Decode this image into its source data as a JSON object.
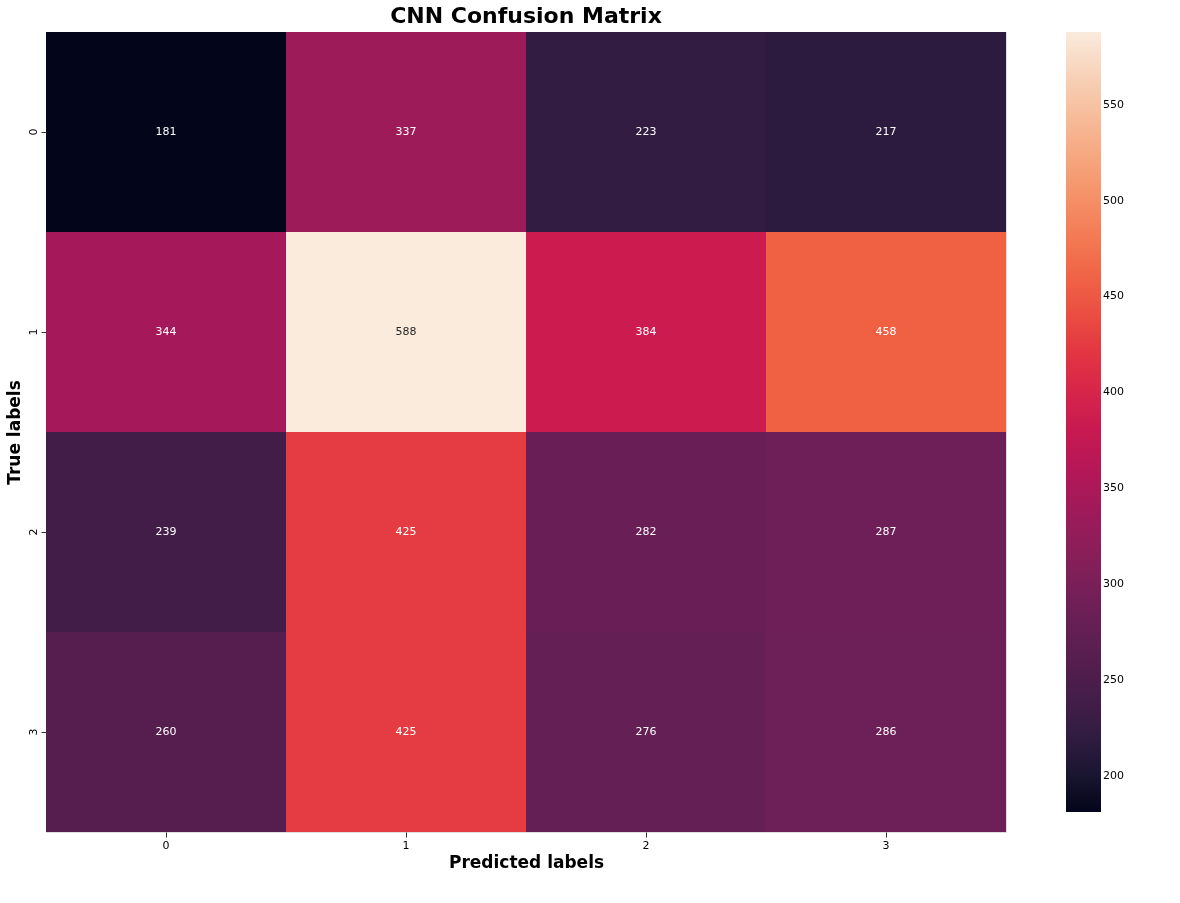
{
  "chart_data": {
    "type": "heatmap",
    "title": "CNN Confusion Matrix",
    "xlabel": "Predicted labels",
    "ylabel": "True labels",
    "categories": [
      "0",
      "1",
      "2",
      "3"
    ],
    "y_categories": [
      "0",
      "1",
      "2",
      "3"
    ],
    "cells": [
      [
        181,
        337,
        223,
        217
      ],
      [
        344,
        588,
        384,
        458
      ],
      [
        239,
        425,
        282,
        287
      ],
      [
        260,
        425,
        276,
        286
      ]
    ],
    "data_labels": true,
    "clim": [
      181,
      588
    ],
    "cticks": [
      200,
      250,
      300,
      350,
      400,
      450,
      500,
      550
    ]
  }
}
